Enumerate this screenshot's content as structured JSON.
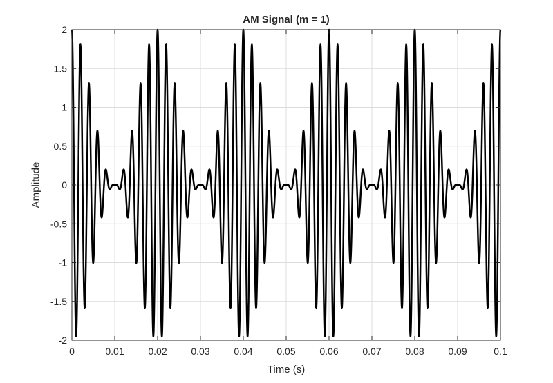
{
  "chart_data": {
    "type": "line",
    "title": "AM Signal (m = 1)",
    "xlabel": "Time (s)",
    "ylabel": "Amplitude",
    "xlim": [
      0,
      0.1
    ],
    "ylim": [
      -2,
      2
    ],
    "grid": true,
    "xticks": [
      0,
      0.01,
      0.02,
      0.03,
      0.04,
      0.05,
      0.06,
      0.07,
      0.08,
      0.09,
      0.1
    ],
    "xtick_labels": [
      "0",
      "0.01",
      "0.02",
      "0.03",
      "0.04",
      "0.05",
      "0.06",
      "0.07",
      "0.08",
      "0.09",
      "0.1"
    ],
    "yticks": [
      -2,
      -1.5,
      -1,
      -0.5,
      0,
      0.5,
      1,
      1.5,
      2
    ],
    "ytick_labels": [
      "-2",
      "-1.5",
      "-1",
      "-0.5",
      "0",
      "0.5",
      "1",
      "1.5",
      "2"
    ],
    "series": [
      {
        "signal": "(1 + m*cos(2*pi*fm*t)) * cos(2*pi*fc*t)",
        "m": 1,
        "fm": 50,
        "fc": 500,
        "t_start": 0,
        "t_end": 0.1,
        "color": "#000000"
      }
    ]
  }
}
